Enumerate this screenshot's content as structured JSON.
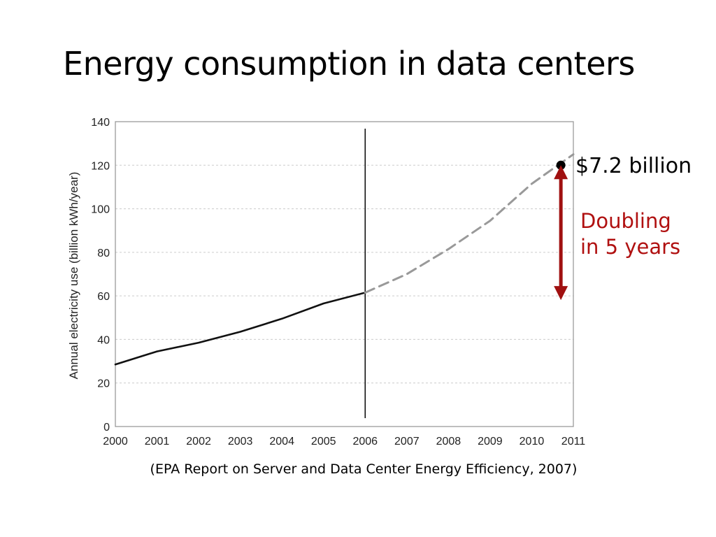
{
  "slide": {
    "title": "Energy consumption in data centers",
    "source": "(EPA Report on Server and Data Center Energy Efficiency, 2007)"
  },
  "annotations": {
    "point_value": "$7.2 billion",
    "doubling_line1": "Doubling",
    "doubling_line2": "in 5 years"
  },
  "colors": {
    "historical": "#111111",
    "projected": "#999999",
    "arrow": "#a01010",
    "grid": "#cccccc"
  },
  "chart_data": {
    "type": "line",
    "title": "",
    "xlabel": "",
    "ylabel": "Annual electricity use (billion kWh/year)",
    "xlim": [
      2000,
      2011
    ],
    "ylim": [
      0,
      140
    ],
    "xticks": [
      "2000",
      "2001",
      "2002",
      "2003",
      "2004",
      "2005",
      "2006",
      "2007",
      "2008",
      "2009",
      "2010",
      "2011"
    ],
    "yticks": [
      "0",
      "20",
      "40",
      "60",
      "80",
      "100",
      "120",
      "140"
    ],
    "grid": true,
    "vertical_marker_x": 2006,
    "series": [
      {
        "style": "solid",
        "x": [
          2000,
          2001,
          2002,
          2003,
          2004,
          2005,
          2006
        ],
        "y": [
          28.5,
          34.5,
          38.5,
          43.5,
          49.5,
          56.5,
          61.5
        ]
      },
      {
        "style": "dashed",
        "x": [
          2006,
          2007,
          2008,
          2009,
          2010,
          2011
        ],
        "y": [
          61.5,
          70,
          81.5,
          94.5,
          111.5,
          125
        ]
      }
    ],
    "highlight_point": {
      "x": 2010.7,
      "y": 120
    },
    "arrow_range": {
      "x": 2010.7,
      "y_from": 60,
      "y_to": 120
    }
  }
}
